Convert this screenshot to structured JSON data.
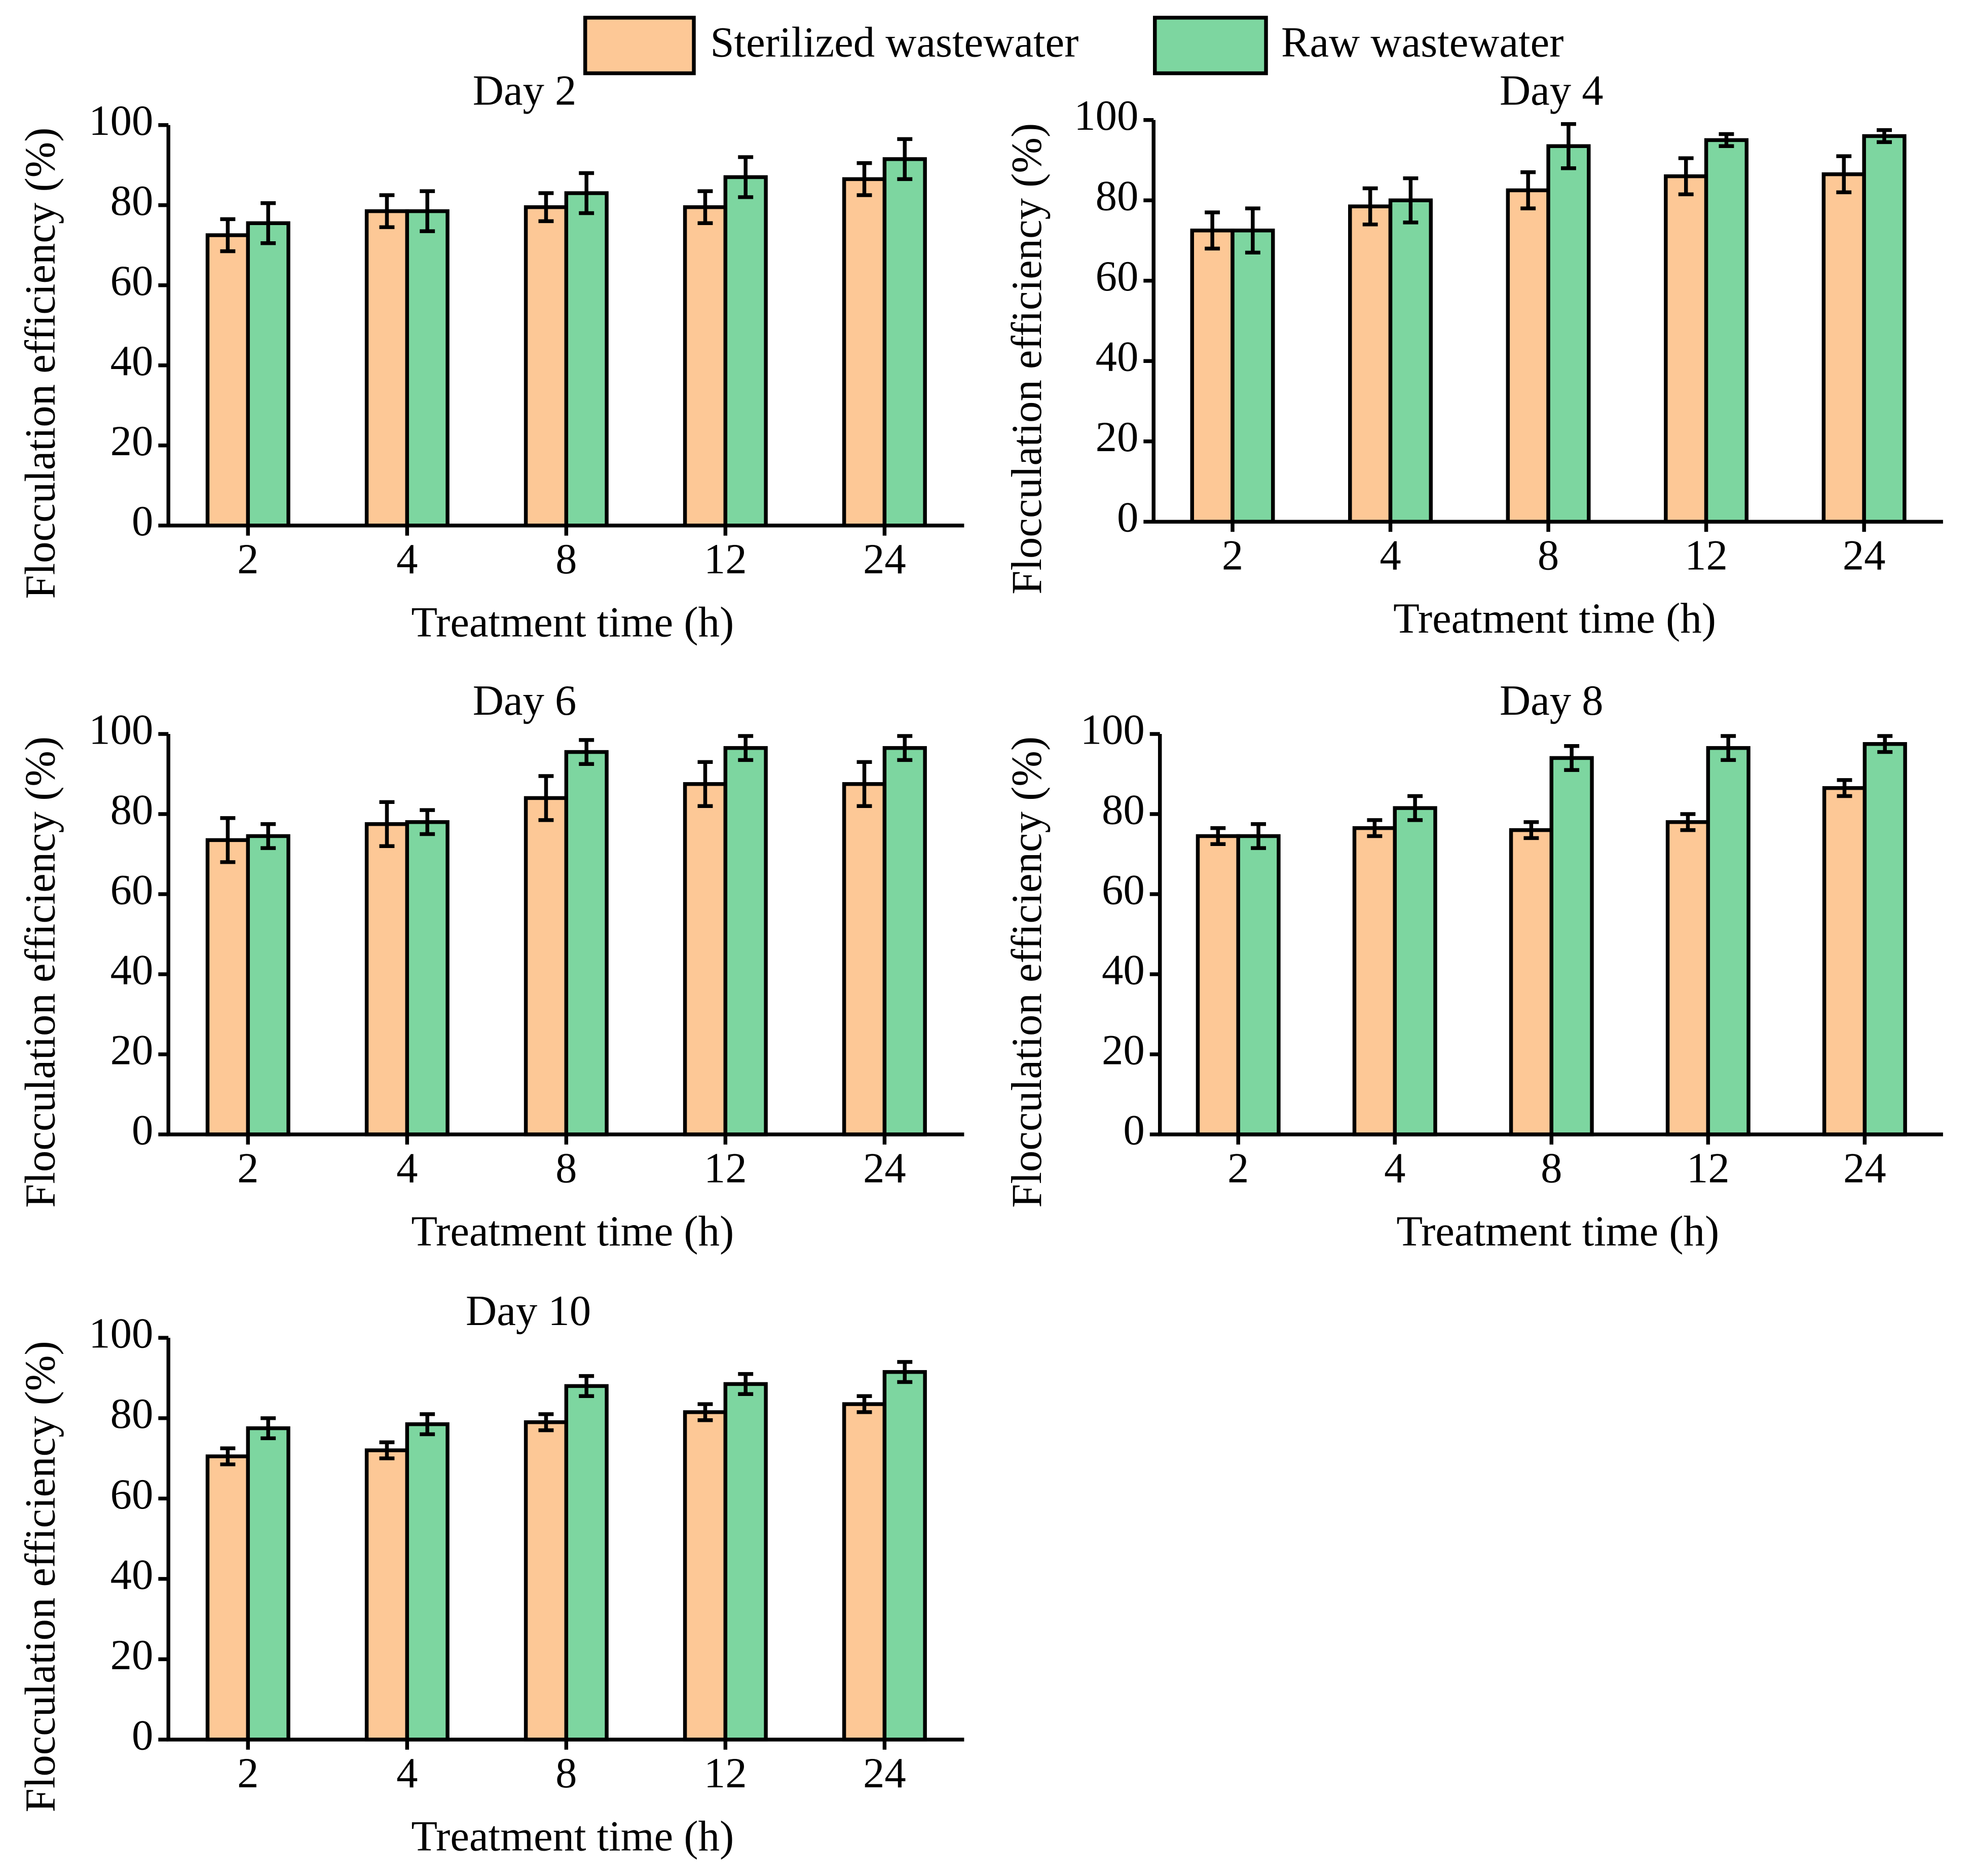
{
  "legend": [
    {
      "name": "Sterilized wastewater",
      "color": "#fdc896"
    },
    {
      "name": "Raw wastewater",
      "color": "#7dd6a0"
    }
  ],
  "chart_data": [
    {
      "type": "bar",
      "title": "Day 2",
      "x_label": "Treatment time (h)",
      "y_label": "Flocculation efficiency  (%)",
      "categories": [
        "2",
        "4",
        "8",
        "12",
        "24"
      ],
      "ylim": [
        0,
        100
      ],
      "yticks": [
        0,
        20,
        40,
        60,
        80,
        100
      ],
      "series": [
        {
          "values": [
            72.5,
            78.5,
            79.5,
            79.5,
            86.5
          ],
          "errors": [
            4,
            4,
            3.5,
            4,
            4
          ]
        },
        {
          "values": [
            75.5,
            78.5,
            83,
            87,
            91.5
          ],
          "errors": [
            5,
            5,
            5,
            5,
            5
          ]
        }
      ]
    },
    {
      "type": "bar",
      "title": "Day 4",
      "x_label": "Treatment time (h)",
      "y_label": "Flocculation efficiency  (%)",
      "categories": [
        "2",
        "4",
        "8",
        "12",
        "24"
      ],
      "ylim": [
        0,
        100
      ],
      "yticks": [
        0,
        20,
        40,
        60,
        80,
        100
      ],
      "series": [
        {
          "values": [
            72.5,
            78.5,
            82.5,
            86,
            86.5
          ],
          "errors": [
            4.5,
            4.5,
            4.5,
            4.5,
            4.5
          ]
        },
        {
          "values": [
            72.5,
            80,
            93.5,
            95,
            96
          ],
          "errors": [
            5.5,
            5.5,
            5.5,
            1.5,
            1.5
          ]
        }
      ]
    },
    {
      "type": "bar",
      "title": "Day 6",
      "x_label": "Treatment time (h)",
      "y_label": "Flocculation efficiency  (%)",
      "categories": [
        "2",
        "4",
        "8",
        "12",
        "24"
      ],
      "ylim": [
        0,
        100
      ],
      "yticks": [
        0,
        20,
        40,
        60,
        80,
        100
      ],
      "series": [
        {
          "values": [
            73.5,
            77.5,
            84,
            87.5,
            87.5
          ],
          "errors": [
            5.5,
            5.5,
            5.5,
            5.5,
            5.5
          ]
        },
        {
          "values": [
            74.5,
            78,
            95.5,
            96.5,
            96.5
          ],
          "errors": [
            3,
            3,
            3,
            3,
            3
          ]
        }
      ]
    },
    {
      "type": "bar",
      "title": "Day 8",
      "x_label": "Treatment time (h)",
      "y_label": "Flocculation efficiency  (%)",
      "categories": [
        "2",
        "4",
        "8",
        "12",
        "24"
      ],
      "ylim": [
        0,
        100
      ],
      "yticks": [
        0,
        20,
        40,
        60,
        80,
        100
      ],
      "series": [
        {
          "values": [
            74.5,
            76.5,
            76,
            78,
            86.5
          ],
          "errors": [
            2,
            2,
            2,
            2,
            2
          ]
        },
        {
          "values": [
            74.5,
            81.5,
            94,
            96.5,
            97.5
          ],
          "errors": [
            3,
            3,
            3,
            3,
            2
          ]
        }
      ]
    },
    {
      "type": "bar",
      "title": "Day 10",
      "x_label": "Treatment time (h)",
      "y_label": "Flocculation efficiency  (%)",
      "categories": [
        "2",
        "4",
        "8",
        "12",
        "24"
      ],
      "ylim": [
        0,
        100
      ],
      "yticks": [
        0,
        20,
        40,
        60,
        80,
        100
      ],
      "series": [
        {
          "values": [
            70.5,
            72,
            79,
            81.5,
            83.5
          ],
          "errors": [
            2,
            2,
            2,
            2,
            2
          ]
        },
        {
          "values": [
            77.5,
            78.5,
            88,
            88.5,
            91.5
          ],
          "errors": [
            2.5,
            2.5,
            2.5,
            2.5,
            2.5
          ]
        }
      ]
    }
  ]
}
